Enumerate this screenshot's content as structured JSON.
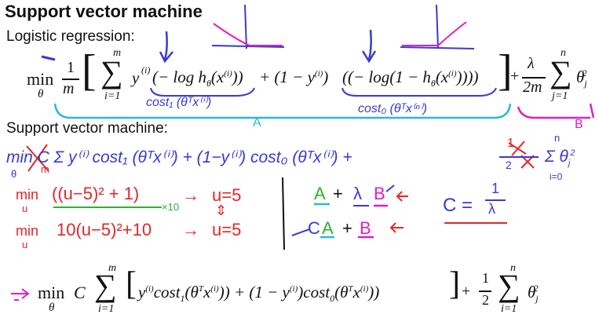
{
  "slide": {
    "title": "Support vector machine",
    "logistic_label": "Logistic regression:",
    "svm_label": "Support vector machine:"
  },
  "logistic_formula": {
    "min": "min",
    "theta": "θ",
    "one": "1",
    "m": "m",
    "sum_top": "m",
    "sum_bottom": "i=1",
    "y_i": "y",
    "sup_i": "(i)",
    "term1": "(− log h",
    "term1b": "(x",
    "term1c": "))",
    "plus_part": "+ (1 − y",
    "term2": "((− log(1 − h",
    "term2b": "(x",
    "term2c": "))))",
    "lambda": "λ",
    "two_m": "2m",
    "sum2_top": "n",
    "sum2_bottom": "j=1",
    "theta_j": "θ",
    "sub_j": "j",
    "sup_2": "2"
  },
  "annotations": {
    "cost1": "cost₁ (θᵀx⁽ⁱ⁾)",
    "cost0": "cost₀ (θᵀx⁽ⁿ⁾)",
    "label_a": "A",
    "label_b": "B",
    "svm_line": "min  C  Σ y⁽ⁱ⁾ cost₁ (θᵀx⁽ⁱ⁾) + (1−y⁽ⁱ⁾) cost₀ (θᵀx⁽ⁱ⁾)  +",
    "svm_theta": "θ",
    "svm_m": "m",
    "svm_sum_top": "m",
    "svm_sum_bottom": "i=1",
    "svm_reg_num": "1",
    "svm_reg_den": "2",
    "svm_reg_sum": "Σ θ",
    "svm_reg_sub": "j",
    "svm_reg_sup": "2",
    "svm_reg_top": "n",
    "svm_reg_bottom": "i=0",
    "red1_min": "min",
    "red1_u": "u",
    "red1_expr": "((u−5)² + 1)",
    "red1_x10": "×10",
    "red1_arrow": "→",
    "red1_result": "u=5",
    "red2_min": "min",
    "red2_u": "u",
    "red2_expr": "10(u−5)²+10",
    "red2_arrow": "→",
    "red2_result": "u=5",
    "updown": "⇕",
    "eq1_a": "A",
    "eq1_plus": "+",
    "eq1_lambda": "λ",
    "eq1_b": "B",
    "eq2_c": "C",
    "eq2_a": "A",
    "eq2_plus": "+",
    "eq2_b": "B",
    "c_eq": "C =",
    "c_num": "1",
    "c_den": "λ"
  },
  "final_formula": {
    "min": "min",
    "theta": "θ",
    "C": "C",
    "sum_top": "m",
    "sum_bottom": "i=1",
    "body": "y",
    "sup_i": "(i)",
    "cost1": "cost",
    "sub1": "1",
    "arg1": "(θ",
    "T": "T",
    "x": "x",
    "arg1_end": ")) + (1 − y",
    "cost0": "cost",
    "sub0": "0",
    "arg2": "(θ",
    "arg2_end": "))",
    "half_num": "1",
    "half_den": "2",
    "sum2_top": "n",
    "sum2_bottom": "i=1",
    "theta_j": "θ",
    "sub_j": "j",
    "sup_2": "2"
  },
  "colors": {
    "blue": "#3a3ad0",
    "cyan": "#2ab8d8",
    "magenta": "#e020c0",
    "red": "#e02828",
    "green": "#30b030",
    "black": "#111111"
  }
}
